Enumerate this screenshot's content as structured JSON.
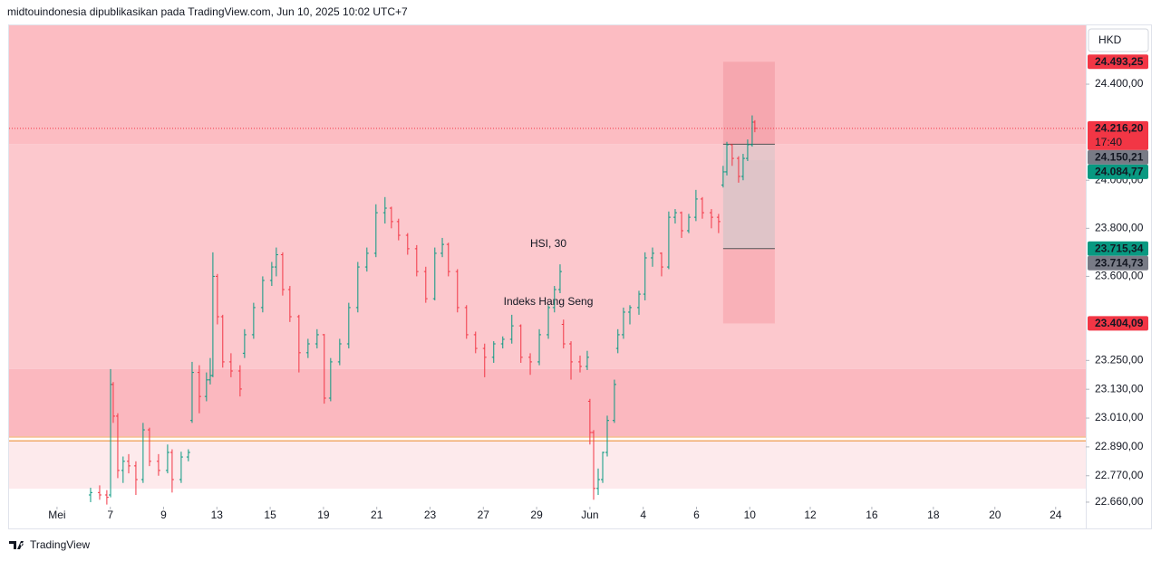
{
  "header": "midtouindonesia dipublikasikan pada TradingView.com, Jun 10, 2025 10:02 UTC+7",
  "footer": "TradingView",
  "chart_data": {
    "type": "ohlc",
    "title": "HSI, 30",
    "subtitle": "Indeks Hang Seng",
    "currency": "HKD",
    "up_color": "#089981",
    "down_color": "#f23645",
    "grid": false,
    "xlim": [
      -1.8,
      38.61
    ],
    "ylim": [
      22641,
      24645
    ],
    "xticks": [
      {
        "value": 0,
        "label": "Mei"
      },
      {
        "value": 2,
        "label": "7"
      },
      {
        "value": 4,
        "label": "9"
      },
      {
        "value": 6,
        "label": "13"
      },
      {
        "value": 8,
        "label": "15"
      },
      {
        "value": 10,
        "label": "19"
      },
      {
        "value": 12,
        "label": "21"
      },
      {
        "value": 14,
        "label": "23"
      },
      {
        "value": 16,
        "label": "27"
      },
      {
        "value": 18,
        "label": "29"
      },
      {
        "value": 20,
        "label": "Jun"
      },
      {
        "value": 22,
        "label": "4"
      },
      {
        "value": 24,
        "label": "6"
      },
      {
        "value": 26,
        "label": "10"
      },
      {
        "value": 28.27,
        "label": "12"
      },
      {
        "value": 30.58,
        "label": "16"
      },
      {
        "value": 32.89,
        "label": "18"
      },
      {
        "value": 35.2,
        "label": "20"
      },
      {
        "value": 37.48,
        "label": "24"
      }
    ],
    "yticks": [
      {
        "value": 24400,
        "label": "24.400,00"
      },
      {
        "value": 24000,
        "label": "24.000,00"
      },
      {
        "value": 23800,
        "label": "23.800,00"
      },
      {
        "value": 23600,
        "label": "23.600,00"
      },
      {
        "value": 23250,
        "label": "23.250,00"
      },
      {
        "value": 23130,
        "label": "23.130,00"
      },
      {
        "value": 23010,
        "label": "23.010,00"
      },
      {
        "value": 22890,
        "label": "22.890,00"
      },
      {
        "value": 22770,
        "label": "22.770,00"
      },
      {
        "value": 22660,
        "label": "22.660,00"
      }
    ],
    "zones": [
      {
        "low": 24150.21,
        "high": 24700,
        "color": "#fcbcc2"
      },
      {
        "low": 23214,
        "high": 24150.21,
        "color": "#fcc8cd"
      },
      {
        "low": 22931,
        "high": 23214,
        "color": "#fbb8bf"
      },
      {
        "low": 22716,
        "high": 22912,
        "color": "#fdeaec"
      }
    ],
    "level_lines": [
      {
        "value": 22931,
        "color": "#f5c08f"
      },
      {
        "value": 22915,
        "color": "#f0a96a"
      }
    ],
    "last_price_line": {
      "value": 24216.2,
      "color": "#f23645"
    },
    "position_box": {
      "x": [
        25.0,
        26.94
      ],
      "levels": [
        24493.25,
        24150.21,
        24084.77,
        23715.34,
        23404.09
      ],
      "colors": [
        "#f4a0a8",
        "#dfc6c8",
        "#d5c3c5",
        "#f8a9b0"
      ]
    },
    "price_labels": [
      {
        "value": 24493.25,
        "label": "24.493,25",
        "color": "#f23645"
      },
      {
        "value": 24216.2,
        "label": "24.216,20",
        "note": "17:40",
        "color": "#f23645"
      },
      {
        "value": 24150.21,
        "label": "24.150,21",
        "color": "#787b86"
      },
      {
        "value": 24084.77,
        "label": "24.084,77",
        "color": "#089981"
      },
      {
        "value": 23715.34,
        "label": "23.715,34",
        "color": "#089981"
      },
      {
        "value": 23714.73,
        "label": "23.714,73",
        "color": "#787b86"
      },
      {
        "value": 23404.09,
        "label": "23.404,09",
        "color": "#f23645"
      }
    ],
    "x": [
      1.26,
      1.6,
      1.87,
      2.01,
      2.11,
      2.28,
      2.48,
      2.69,
      2.96,
      3.23,
      3.47,
      3.81,
      4.15,
      4.32,
      4.66,
      4.93,
      5.07,
      5.34,
      5.61,
      5.75,
      5.85,
      6.02,
      6.22,
      6.53,
      6.87,
      7.04,
      7.38,
      7.72,
      8.06,
      8.23,
      8.47,
      8.74,
      9.08,
      9.42,
      9.76,
      10.03,
      10.27,
      10.61,
      10.95,
      11.29,
      11.63,
      11.97,
      12.31,
      12.55,
      12.82,
      13.16,
      13.5,
      13.84,
      14.18,
      14.46,
      14.69,
      15.03,
      15.37,
      15.71,
      16.05,
      16.39,
      16.73,
      17.07,
      17.41,
      17.76,
      18.1,
      18.44,
      18.67,
      18.88,
      19.01,
      19.29,
      19.63,
      19.9,
      20.0,
      20.14,
      20.31,
      20.48,
      20.65,
      20.92,
      21.05,
      21.26,
      21.5,
      21.84,
      22.07,
      22.35,
      22.69,
      22.96,
      23.2,
      23.44,
      23.71,
      23.98,
      24.22,
      24.56,
      24.83,
      25.0,
      25.14,
      25.34,
      25.58,
      25.75,
      25.92,
      26.09,
      26.19
    ],
    "ohlc": [
      [
        22690,
        22720,
        22660,
        22700
      ],
      [
        22700,
        22730,
        22670,
        22690
      ],
      [
        22690,
        22710,
        22650,
        22680
      ],
      [
        22690,
        23214,
        22680,
        23150
      ],
      [
        23150,
        23160,
        22990,
        23018
      ],
      [
        23018,
        23030,
        22760,
        22792
      ],
      [
        22792,
        22850,
        22740,
        22830
      ],
      [
        22830,
        22860,
        22780,
        22811
      ],
      [
        22811,
        22830,
        22690,
        22754
      ],
      [
        22754,
        22990,
        22740,
        22961
      ],
      [
        22961,
        22970,
        22810,
        22830
      ],
      [
        22830,
        22860,
        22770,
        22792
      ],
      [
        22792,
        22900,
        22780,
        22867
      ],
      [
        22867,
        22880,
        22700,
        22754
      ],
      [
        22754,
        22870,
        22740,
        22848
      ],
      [
        22848,
        22880,
        22830,
        22867
      ],
      [
        23000,
        23244,
        22990,
        23200
      ],
      [
        23200,
        23230,
        23030,
        23100
      ],
      [
        23100,
        23200,
        23080,
        23169
      ],
      [
        23169,
        23260,
        23150,
        23187
      ],
      [
        23187,
        23700,
        23180,
        23600
      ],
      [
        23600,
        23610,
        23400,
        23432
      ],
      [
        23432,
        23440,
        23220,
        23244
      ],
      [
        23244,
        23280,
        23180,
        23206
      ],
      [
        23206,
        23230,
        23100,
        23131
      ],
      [
        23280,
        23380,
        23260,
        23357
      ],
      [
        23357,
        23490,
        23340,
        23470
      ],
      [
        23470,
        23600,
        23450,
        23583
      ],
      [
        23583,
        23660,
        23560,
        23639
      ],
      [
        23639,
        23720,
        23600,
        23690
      ],
      [
        23690,
        23700,
        23520,
        23545
      ],
      [
        23545,
        23560,
        23410,
        23432
      ],
      [
        23432,
        23440,
        23200,
        23282
      ],
      [
        23282,
        23340,
        23260,
        23319
      ],
      [
        23319,
        23380,
        23300,
        23357
      ],
      [
        23357,
        23360,
        23070,
        23093
      ],
      [
        23093,
        23260,
        23080,
        23244
      ],
      [
        23244,
        23340,
        23230,
        23319
      ],
      [
        23319,
        23490,
        23300,
        23470
      ],
      [
        23470,
        23660,
        23450,
        23639
      ],
      [
        23639,
        23720,
        23620,
        23696
      ],
      [
        23696,
        23900,
        23680,
        23865
      ],
      [
        23865,
        23930,
        23820,
        23884
      ],
      [
        23884,
        23890,
        23800,
        23828
      ],
      [
        23828,
        23840,
        23750,
        23771
      ],
      [
        23771,
        23780,
        23690,
        23715
      ],
      [
        23715,
        23730,
        23600,
        23620
      ],
      [
        23620,
        23640,
        23490,
        23507
      ],
      [
        23507,
        23720,
        23500,
        23696
      ],
      [
        23696,
        23760,
        23680,
        23733
      ],
      [
        23733,
        23740,
        23600,
        23620
      ],
      [
        23620,
        23630,
        23450,
        23470
      ],
      [
        23470,
        23480,
        23340,
        23357
      ],
      [
        23357,
        23370,
        23280,
        23300
      ],
      [
        23300,
        23320,
        23180,
        23263
      ],
      [
        23263,
        23330,
        23240,
        23319
      ],
      [
        23319,
        23350,
        23300,
        23338
      ],
      [
        23338,
        23440,
        23320,
        23394
      ],
      [
        23394,
        23400,
        23240,
        23263
      ],
      [
        23263,
        23280,
        23190,
        23244
      ],
      [
        23244,
        23380,
        23230,
        23357
      ],
      [
        23357,
        23480,
        23340,
        23470
      ],
      [
        23470,
        23560,
        23450,
        23545
      ],
      [
        23545,
        23650,
        23530,
        23620
      ],
      [
        23400,
        23420,
        23300,
        23319
      ],
      [
        23319,
        23330,
        23170,
        23244
      ],
      [
        23244,
        23270,
        23200,
        23225
      ],
      [
        23225,
        23290,
        23210,
        23263
      ],
      [
        23080,
        23090,
        22900,
        22950
      ],
      [
        22950,
        22960,
        22670,
        22717
      ],
      [
        22717,
        22800,
        22690,
        22754
      ],
      [
        22754,
        22870,
        22740,
        22867
      ],
      [
        22867,
        23020,
        22850,
        23000
      ],
      [
        23000,
        23170,
        22990,
        23150
      ],
      [
        23300,
        23380,
        23280,
        23357
      ],
      [
        23357,
        23470,
        23340,
        23451
      ],
      [
        23451,
        23480,
        23400,
        23470
      ],
      [
        23470,
        23540,
        23440,
        23526
      ],
      [
        23526,
        23700,
        23500,
        23677
      ],
      [
        23677,
        23720,
        23640,
        23696
      ],
      [
        23696,
        23700,
        23600,
        23639
      ],
      [
        23639,
        23870,
        23630,
        23846
      ],
      [
        23846,
        23880,
        23820,
        23865
      ],
      [
        23865,
        23870,
        23760,
        23790
      ],
      [
        23790,
        23860,
        23780,
        23846
      ],
      [
        23846,
        23960,
        23830,
        23922
      ],
      [
        23922,
        23930,
        23840,
        23865
      ],
      [
        23865,
        23880,
        23800,
        23846
      ],
      [
        23846,
        23860,
        23780,
        23828
      ],
      [
        23980,
        24060,
        23970,
        24035
      ],
      [
        24035,
        24160,
        24020,
        24148
      ],
      [
        24148,
        24150,
        24060,
        24091
      ],
      [
        24091,
        24100,
        23990,
        24016
      ],
      [
        24016,
        24110,
        24000,
        24091
      ],
      [
        24091,
        24170,
        24080,
        24148
      ],
      [
        24148,
        24270,
        24140,
        24242
      ],
      [
        24242,
        24250,
        24200,
        24216.2
      ]
    ]
  }
}
